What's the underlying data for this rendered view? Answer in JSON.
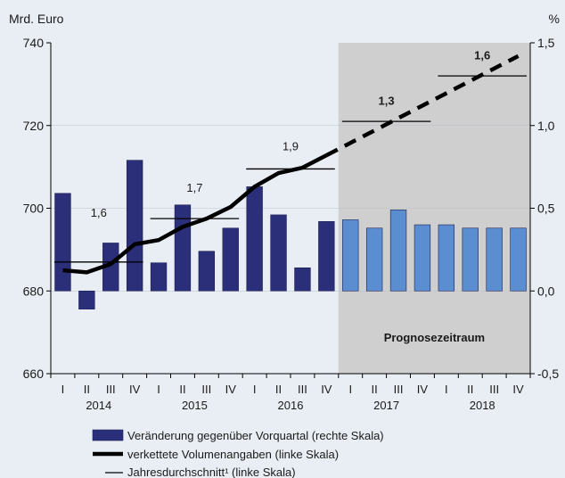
{
  "chart_data": {
    "type": "bar+line",
    "left_unit": "Mrd. Euro",
    "right_unit": "%",
    "left_axis": {
      "min": 660,
      "max": 740,
      "ticks": [
        660,
        680,
        700,
        720,
        740
      ]
    },
    "right_axis": {
      "min": -0.5,
      "max": 1.5,
      "ticks": [
        "-0,5",
        "0,0",
        "0,5",
        "1,0",
        "1,5"
      ],
      "tick_values": [
        -0.5,
        0,
        0.5,
        1.0,
        1.5
      ]
    },
    "quarters": [
      "I",
      "II",
      "III",
      "IV",
      "I",
      "II",
      "III",
      "IV",
      "I",
      "II",
      "III",
      "IV",
      "I",
      "II",
      "III",
      "IV",
      "I",
      "II",
      "III",
      "IV"
    ],
    "years": [
      "2014",
      "2015",
      "2016",
      "2017",
      "2018"
    ],
    "forecast_label": "Prognosezeitraum",
    "forecast_start_index": 12,
    "bars": {
      "name": "Veränderung gegenüber Vorquartal (rechte Skala)",
      "values": [
        0.59,
        -0.11,
        0.29,
        0.79,
        0.17,
        0.52,
        0.24,
        0.38,
        0.63,
        0.46,
        0.14,
        0.42,
        0.43,
        0.38,
        0.49,
        0.4,
        0.4,
        0.38,
        0.38,
        0.38
      ],
      "color": "#2b2f7a",
      "forecast_color": "#5b8ed0"
    },
    "line": {
      "name": "verkettete Volumenangaben (linke Skala)",
      "values": [
        685.0,
        684.5,
        686.5,
        691.3,
        692.3,
        695.5,
        697.5,
        700.3,
        705.2,
        708.5,
        709.8,
        712.8,
        715.8,
        718.8,
        721.8,
        724.8,
        727.8,
        730.8,
        733.8,
        736.8
      ],
      "forecast_from_index": 12,
      "color": "#000000"
    },
    "annual_averages": {
      "name": "Jahresdurchschnitt¹ (linke Skala)",
      "items": [
        {
          "year": "2014",
          "value": 687.0,
          "label": "1,6",
          "label_value": 698
        },
        {
          "year": "2015",
          "value": 697.5,
          "label": "1,7",
          "label_value": 704
        },
        {
          "year": "2016",
          "value": 709.5,
          "label": "1,9",
          "label_value": 714
        },
        {
          "year": "2017",
          "value": 721.0,
          "label": "1,3",
          "label_value": 725
        },
        {
          "year": "2018",
          "value": 732.0,
          "label": "1,6",
          "label_value": 736
        }
      ]
    }
  }
}
